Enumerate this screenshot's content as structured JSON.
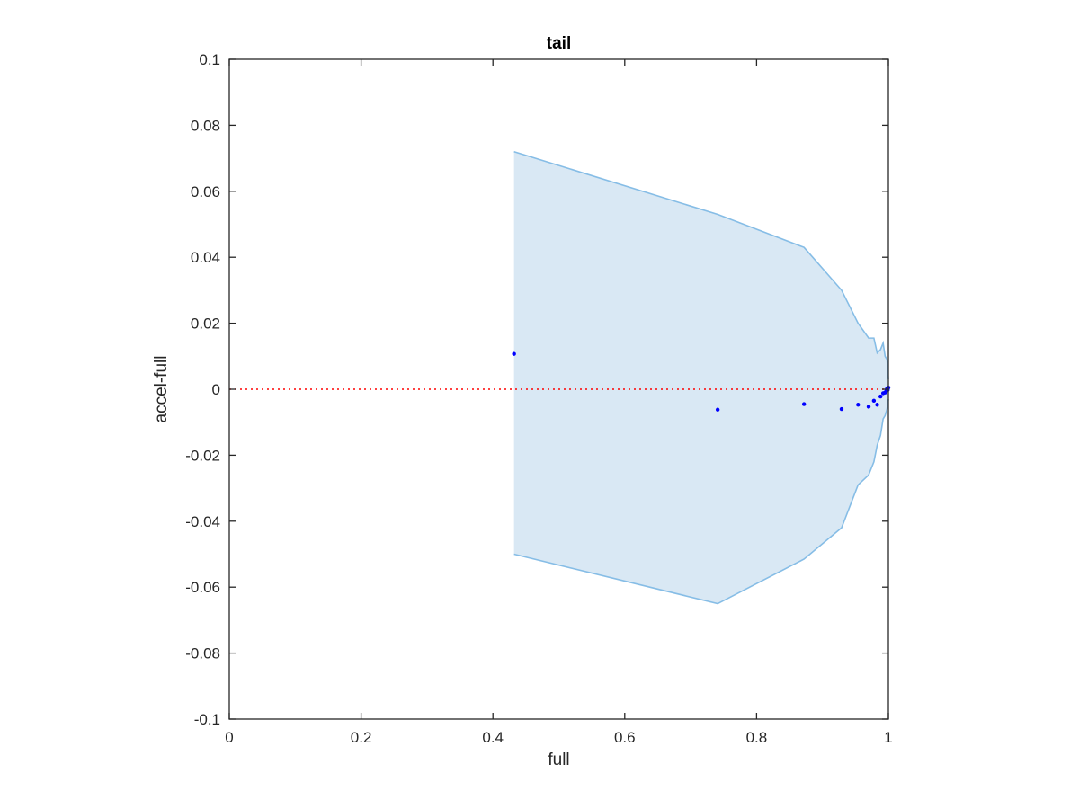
{
  "chart_data": {
    "type": "scatter",
    "title": "tail",
    "xlabel": "full",
    "ylabel": "accel-full",
    "xlim": [
      0,
      1
    ],
    "ylim": [
      -0.1,
      0.1
    ],
    "xticks": [
      0,
      0.2,
      0.4,
      0.6,
      0.8,
      1
    ],
    "xtick_labels": [
      "0",
      "0.2",
      "0.4",
      "0.6",
      "0.8",
      "1"
    ],
    "yticks": [
      0.1,
      0.08,
      0.06,
      0.04,
      0.02,
      0,
      -0.02,
      -0.04,
      -0.06,
      -0.08,
      -0.1
    ],
    "ytick_labels": [
      "0.1",
      "0.08",
      "0.06",
      "0.04",
      "0.02",
      "0",
      "-0.02",
      "-0.04",
      "-0.06",
      "-0.08",
      "-0.1"
    ],
    "grid": false,
    "legend": null,
    "reference_line": {
      "y": 0,
      "color": "#ff0000",
      "style": "dotted"
    },
    "band": {
      "fill": "#d9e8f4",
      "stroke": "#86bde6",
      "upper": [
        [
          0.432,
          0.072
        ],
        [
          0.741,
          0.053
        ],
        [
          0.872,
          0.043
        ],
        [
          0.929,
          0.03
        ],
        [
          0.954,
          0.02
        ],
        [
          0.97,
          0.0155
        ],
        [
          0.978,
          0.0155
        ],
        [
          0.983,
          0.011
        ],
        [
          0.988,
          0.012
        ],
        [
          0.992,
          0.014
        ],
        [
          0.995,
          0.01
        ],
        [
          0.998,
          0.009
        ],
        [
          1.0,
          0.003
        ]
      ],
      "lower": [
        [
          0.432,
          -0.05
        ],
        [
          0.741,
          -0.065
        ],
        [
          0.872,
          -0.0515
        ],
        [
          0.929,
          -0.042
        ],
        [
          0.954,
          -0.029
        ],
        [
          0.97,
          -0.026
        ],
        [
          0.978,
          -0.022
        ],
        [
          0.983,
          -0.017
        ],
        [
          0.988,
          -0.014
        ],
        [
          0.992,
          -0.009
        ],
        [
          0.995,
          -0.008
        ],
        [
          0.998,
          -0.006
        ],
        [
          1.0,
          -0.003
        ]
      ]
    },
    "series": [
      {
        "color": "#0000ff",
        "points": [
          [
            0.432,
            0.0107
          ],
          [
            0.741,
            -0.0062
          ],
          [
            0.872,
            -0.0045
          ],
          [
            0.929,
            -0.006
          ],
          [
            0.954,
            -0.0047
          ],
          [
            0.97,
            -0.0053
          ],
          [
            0.978,
            -0.0035
          ],
          [
            0.983,
            -0.0047
          ],
          [
            0.988,
            -0.0022
          ],
          [
            0.992,
            -0.0012
          ],
          [
            0.995,
            -0.001
          ],
          [
            0.997,
            -0.0005
          ],
          [
            0.998,
            0.0002
          ],
          [
            0.999,
            -0.0002
          ],
          [
            1.0,
            0.0005
          ]
        ]
      }
    ]
  }
}
